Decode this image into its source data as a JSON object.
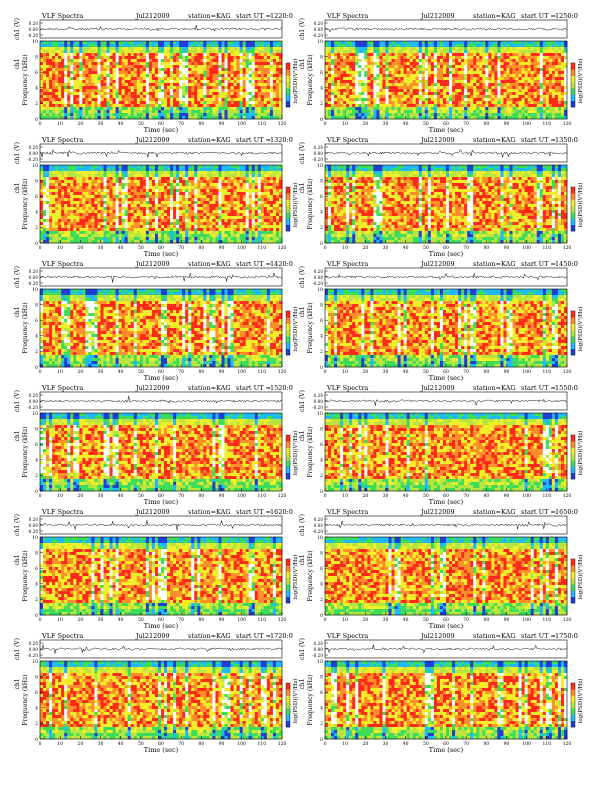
{
  "page": {
    "label_title": "VLF Spectra",
    "label_station": "station=KAG",
    "label_start": "start  UT =",
    "y_wave_label": "ch1 (V)",
    "y_freq_label": "Frequency (kHz)",
    "y_freq_channel": "ch1",
    "x_label": "Time (sec)",
    "colorbar_label": "log(PSD)(V²/Hz)",
    "title_color": "#000000",
    "spectrogram_colors": [
      "#1f3fd6",
      "#1fb9ff",
      "#3ddc5a",
      "#b8e640",
      "#f2ee2a",
      "#ff8f2a",
      "#ff2a1a"
    ]
  },
  "chart_data": [
    {
      "type": "heatmap",
      "date": "Jul212009",
      "start_ut": "1220:0",
      "wave_yticks": [
        "0.20",
        "0.00",
        "-0.20"
      ],
      "freq_yticks": [
        "0",
        "2",
        "4",
        "6",
        "8",
        "10"
      ],
      "x_ticks": [
        "0",
        "10",
        "20",
        "30",
        "40",
        "50",
        "60",
        "70",
        "80",
        "90",
        "100",
        "110",
        "120"
      ],
      "xlim": [
        0,
        120
      ],
      "freq_ylim": [
        0,
        10
      ],
      "wave_ylim": [
        -0.3,
        0.3
      ]
    },
    {
      "type": "heatmap",
      "date": "Jul212009",
      "start_ut": "1250:0",
      "wave_yticks": [
        "0.20",
        "0.00",
        "-0.20"
      ],
      "freq_yticks": [
        "0",
        "2",
        "4",
        "6",
        "8",
        "10"
      ],
      "x_ticks": [
        "0",
        "10",
        "20",
        "30",
        "40",
        "50",
        "60",
        "70",
        "80",
        "90",
        "100",
        "110",
        "120"
      ],
      "xlim": [
        0,
        120
      ],
      "freq_ylim": [
        0,
        10
      ],
      "wave_ylim": [
        -0.3,
        0.3
      ]
    },
    {
      "type": "heatmap",
      "date": "Jul212009",
      "start_ut": "1320:0",
      "wave_yticks": [
        "0.20",
        "0.00",
        "-0.20"
      ],
      "freq_yticks": [
        "0",
        "2",
        "4",
        "6",
        "8",
        "10"
      ],
      "x_ticks": [
        "0",
        "10",
        "20",
        "30",
        "40",
        "50",
        "60",
        "70",
        "80",
        "90",
        "100",
        "110",
        "120"
      ],
      "xlim": [
        0,
        120
      ],
      "freq_ylim": [
        0,
        10
      ],
      "wave_ylim": [
        -0.3,
        0.3
      ]
    },
    {
      "type": "heatmap",
      "date": "Jul212009",
      "start_ut": "1350:0",
      "wave_yticks": [
        "0.20",
        "0.00",
        "-0.20"
      ],
      "freq_yticks": [
        "0",
        "2",
        "4",
        "6",
        "8",
        "10"
      ],
      "x_ticks": [
        "0",
        "10",
        "20",
        "30",
        "40",
        "50",
        "60",
        "70",
        "80",
        "90",
        "100",
        "110",
        "120"
      ],
      "xlim": [
        0,
        120
      ],
      "freq_ylim": [
        0,
        10
      ],
      "wave_ylim": [
        -0.3,
        0.3
      ]
    },
    {
      "type": "heatmap",
      "date": "Jul212009",
      "start_ut": "1420:0",
      "wave_yticks": [
        "0.20",
        "0.00",
        "-0.20"
      ],
      "freq_yticks": [
        "0",
        "2",
        "4",
        "6",
        "8",
        "10"
      ],
      "x_ticks": [
        "0",
        "10",
        "20",
        "30",
        "40",
        "50",
        "60",
        "70",
        "80",
        "90",
        "100",
        "110",
        "120"
      ],
      "xlim": [
        0,
        120
      ],
      "freq_ylim": [
        0,
        10
      ],
      "wave_ylim": [
        -0.3,
        0.3
      ]
    },
    {
      "type": "heatmap",
      "date": "Jul212009",
      "start_ut": "1450:0",
      "wave_yticks": [
        "0.20",
        "0.00",
        "-0.20"
      ],
      "freq_yticks": [
        "0",
        "2",
        "4",
        "6",
        "8",
        "10"
      ],
      "x_ticks": [
        "0",
        "10",
        "20",
        "30",
        "40",
        "50",
        "60",
        "70",
        "80",
        "90",
        "100",
        "110",
        "120"
      ],
      "xlim": [
        0,
        120
      ],
      "freq_ylim": [
        0,
        10
      ],
      "wave_ylim": [
        -0.3,
        0.3
      ]
    },
    {
      "type": "heatmap",
      "date": "Jul212009",
      "start_ut": "1520:0",
      "wave_yticks": [
        "0.20",
        "0.00",
        "-0.20"
      ],
      "freq_yticks": [
        "0",
        "2",
        "4",
        "6",
        "8",
        "10"
      ],
      "x_ticks": [
        "0",
        "10",
        "20",
        "30",
        "40",
        "50",
        "60",
        "70",
        "80",
        "90",
        "100",
        "110",
        "120"
      ],
      "xlim": [
        0,
        120
      ],
      "freq_ylim": [
        0,
        10
      ],
      "wave_ylim": [
        -0.3,
        0.3
      ]
    },
    {
      "type": "heatmap",
      "date": "Jul212009",
      "start_ut": "1550:0",
      "wave_yticks": [
        "0.20",
        "0.00",
        "-0.20"
      ],
      "freq_yticks": [
        "0",
        "2",
        "4",
        "6",
        "8",
        "10"
      ],
      "x_ticks": [
        "0",
        "10",
        "20",
        "30",
        "40",
        "50",
        "60",
        "70",
        "80",
        "90",
        "100",
        "110",
        "120"
      ],
      "xlim": [
        0,
        120
      ],
      "freq_ylim": [
        0,
        10
      ],
      "wave_ylim": [
        -0.3,
        0.3
      ]
    },
    {
      "type": "heatmap",
      "date": "Jul212009",
      "start_ut": "1620:0",
      "wave_yticks": [
        "0.20",
        "0.00",
        "-0.20"
      ],
      "freq_yticks": [
        "0",
        "2",
        "4",
        "6",
        "8",
        "10"
      ],
      "x_ticks": [
        "0",
        "10",
        "20",
        "30",
        "40",
        "50",
        "60",
        "70",
        "80",
        "90",
        "100",
        "110",
        "120"
      ],
      "xlim": [
        0,
        120
      ],
      "freq_ylim": [
        0,
        10
      ],
      "wave_ylim": [
        -0.3,
        0.3
      ]
    },
    {
      "type": "heatmap",
      "date": "Jul212009",
      "start_ut": "1650:0",
      "wave_yticks": [
        "0.20",
        "0.00",
        "-0.20"
      ],
      "freq_yticks": [
        "0",
        "2",
        "4",
        "6",
        "8",
        "10"
      ],
      "x_ticks": [
        "0",
        "10",
        "20",
        "30",
        "40",
        "50",
        "60",
        "70",
        "80",
        "90",
        "100",
        "110",
        "120"
      ],
      "xlim": [
        0,
        120
      ],
      "freq_ylim": [
        0,
        10
      ],
      "wave_ylim": [
        -0.3,
        0.3
      ]
    },
    {
      "type": "heatmap",
      "date": "Jul212009",
      "start_ut": "1720:0",
      "wave_yticks": [
        "0.20",
        "0.00",
        "-0.20"
      ],
      "freq_yticks": [
        "0",
        "2",
        "4",
        "6",
        "8",
        "10"
      ],
      "x_ticks": [
        "0",
        "10",
        "20",
        "30",
        "40",
        "50",
        "60",
        "70",
        "80",
        "90",
        "100",
        "110",
        "120"
      ],
      "xlim": [
        0,
        120
      ],
      "freq_ylim": [
        0,
        10
      ],
      "wave_ylim": [
        -0.3,
        0.3
      ]
    },
    {
      "type": "heatmap",
      "date": "Jul212009",
      "start_ut": "1750:0",
      "wave_yticks": [
        "0.20",
        "0.00",
        "-0.20"
      ],
      "freq_yticks": [
        "0",
        "2",
        "4",
        "6",
        "8",
        "10"
      ],
      "x_ticks": [
        "0",
        "10",
        "20",
        "30",
        "40",
        "50",
        "60",
        "70",
        "80",
        "90",
        "100",
        "110",
        "120"
      ],
      "xlim": [
        0,
        120
      ],
      "freq_ylim": [
        0,
        10
      ],
      "wave_ylim": [
        -0.3,
        0.3
      ]
    }
  ]
}
